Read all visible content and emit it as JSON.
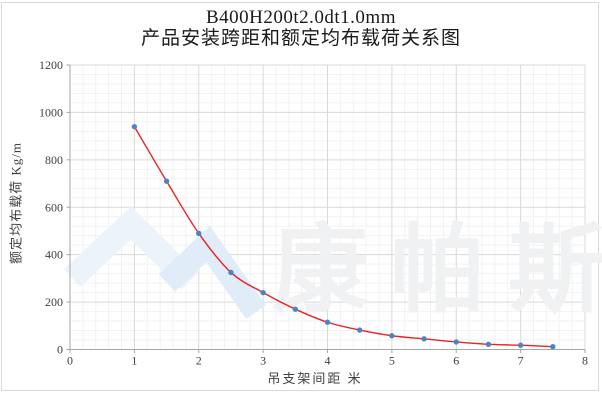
{
  "page": {
    "background": "#ffffff",
    "border_color": "#d9d9d9"
  },
  "header": {
    "title": "B400H200t2.0dt1.0mm",
    "subtitle": "产品安装跨距和额定均布载荷关系图"
  },
  "watermark": {
    "text": "康帕斯",
    "logo": "double-chevron-logo",
    "text_color": "#f0f1f3",
    "logo_color_left": "#edf3fa",
    "logo_color_right": "#e0ecf8"
  },
  "chart_data": {
    "type": "scatter",
    "trendline": true,
    "title": "B400H200t2.0dt1.0mm 产品安装跨距和额定均布载荷关系图",
    "xlabel": "吊支架间距  米",
    "ylabel": "额定均布载荷 Kg/m",
    "x": [
      1.0,
      1.5,
      2.0,
      2.5,
      3.0,
      3.5,
      4.0,
      4.5,
      5.0,
      5.5,
      6.0,
      6.5,
      7.0,
      7.5
    ],
    "y": [
      940,
      710,
      490,
      325,
      240,
      170,
      115,
      82,
      58,
      45,
      32,
      22,
      18,
      12
    ],
    "xlim": [
      0,
      8
    ],
    "ylim": [
      0,
      1200
    ],
    "x_major_step": 1,
    "x_minor_step": 0.2,
    "y_major_step": 200,
    "y_minor_step": 40,
    "x_ticks": [
      "0",
      "1",
      "2",
      "3",
      "4",
      "5",
      "6",
      "7",
      "8"
    ],
    "y_ticks": [
      "0",
      "200",
      "400",
      "600",
      "800",
      "1000",
      "1200"
    ],
    "grid": true,
    "legend": false,
    "colors": {
      "curve": "#ed2024",
      "marker": "#4d85c3",
      "grid_major": "#d9d9d9",
      "grid_minor": "#f2f2f2",
      "axis_line": "#a6a6a6",
      "tick_text": "#3f3f3f"
    }
  }
}
